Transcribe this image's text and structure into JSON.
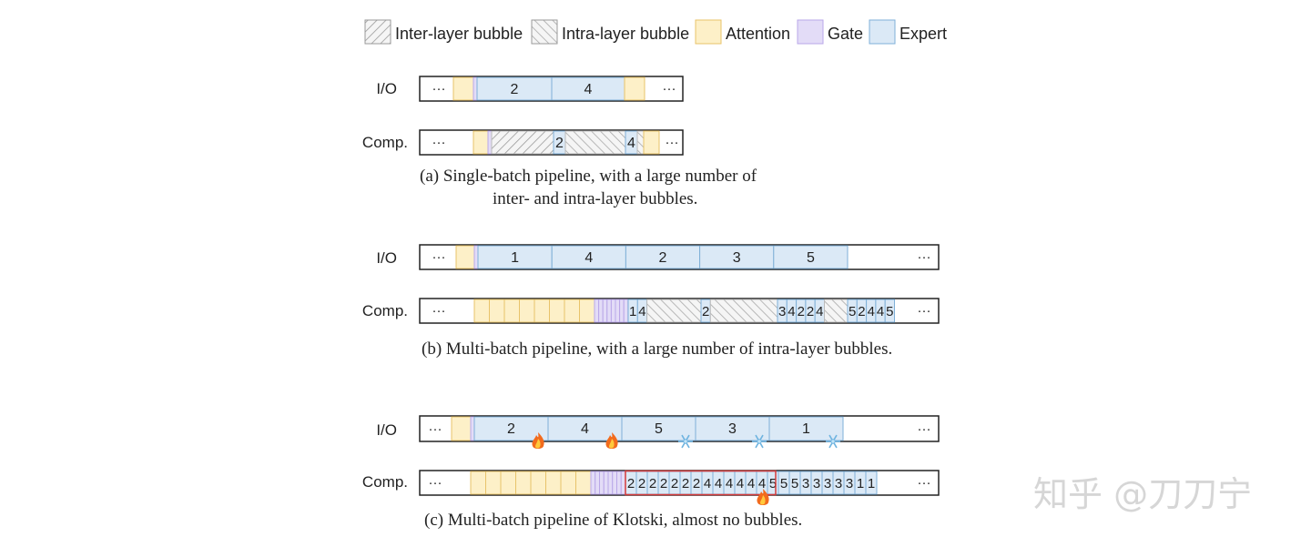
{
  "legend": {
    "inter_layer_bubble": "Inter-layer bubble",
    "intra_layer_bubble": "Intra-layer bubble",
    "attention": "Attention",
    "gate": "Gate",
    "expert": "Expert"
  },
  "labels": {
    "io": "I/O",
    "comp": "Comp.",
    "ellipsis": "···"
  },
  "colors": {
    "attention_fill": "#fdf0c8",
    "attention_stroke": "#e8c36a",
    "gate_fill": "#e3dcf7",
    "gate_stroke": "#b9a7e8",
    "expert_fill": "#dbe9f6",
    "expert_stroke": "#7fb0d8",
    "highlight": "#d43a3a"
  },
  "panel_a": {
    "io_experts": [
      "2",
      "4"
    ],
    "comp_experts": [
      "2",
      "4"
    ],
    "caption_line1": "(a) Single-batch pipeline, with a large number of",
    "caption_line2": "inter- and intra-layer bubbles."
  },
  "panel_b": {
    "io_experts": [
      "1",
      "4",
      "2",
      "3",
      "5"
    ],
    "comp_sequence": "14 2 34224 52445",
    "caption": "(b) Multi-batch pipeline, with a large number of intra-layer bubbles."
  },
  "panel_c": {
    "io_experts": [
      "2",
      "4",
      "5",
      "3",
      "1"
    ],
    "io_expert_status": [
      "hot",
      "hot",
      "cold",
      "cold",
      "cold"
    ],
    "comp_sequence": "22222224444445553333311",
    "comp_hot_marker": "fire-icon",
    "status_icons": {
      "hot": "fire-icon",
      "cold": "snowflake-icon"
    },
    "caption": "(c) Multi-batch pipeline of Klotski, almost no bubbles."
  },
  "watermark": "知乎 @刀刀宁"
}
